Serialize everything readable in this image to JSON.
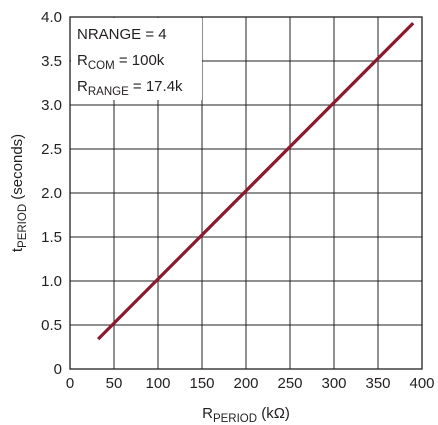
{
  "chart_data": {
    "type": "line",
    "xlabel": {
      "main": "R",
      "sub": "PERIOD",
      "unit": " (kΩ)"
    },
    "ylabel": {
      "main": "t",
      "sub": "PERIOD",
      "unit": " (seconds)"
    },
    "xlim": [
      0,
      400
    ],
    "ylim": [
      0,
      4.0
    ],
    "x_ticks": [
      "0",
      "50",
      "100",
      "150",
      "200",
      "250",
      "300",
      "350",
      "400"
    ],
    "y_ticks": [
      "0",
      "0.5",
      "1.0",
      "1.5",
      "2.0",
      "2.5",
      "3.0",
      "3.5",
      "4.0"
    ],
    "grid": true,
    "annotation": [
      {
        "main": "NRANGE = 4",
        "sub": "",
        "rest": ""
      },
      {
        "main": "R",
        "sub": "COM",
        "rest": " = 100k"
      },
      {
        "main": "R",
        "sub": "RANGE",
        "rest": " = 17.4k"
      }
    ],
    "series": [
      {
        "color": "#8b1a2e",
        "x": [
          32,
          390
        ],
        "y": [
          0.34,
          3.93
        ]
      }
    ]
  }
}
